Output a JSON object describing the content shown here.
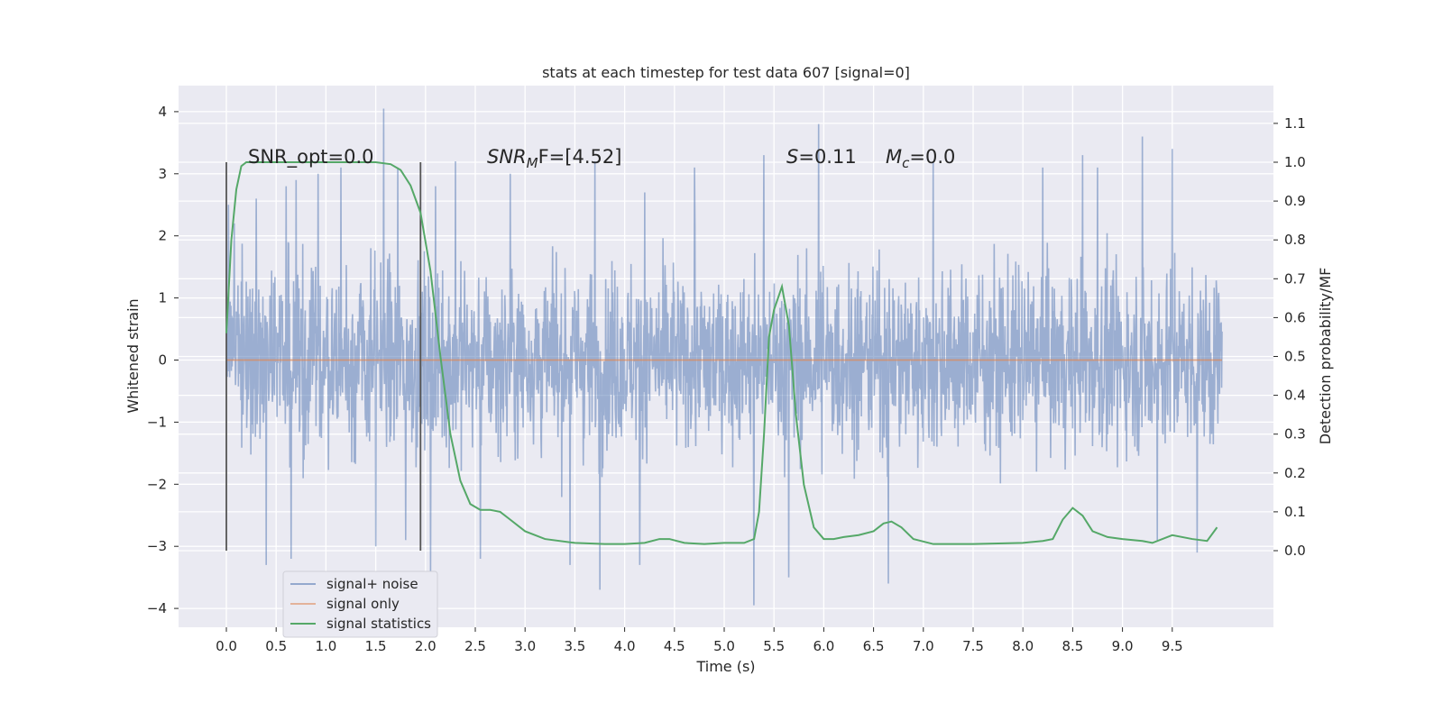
{
  "chart_data": {
    "type": "line",
    "title": "stats at each timestep for test data 607 [signal=0]",
    "xlabel": "Time (s)",
    "ylabel": "Whitened strain",
    "y2label": "Detection probability/MF",
    "xlim": [
      -0.5,
      10.5
    ],
    "ylim": [
      -4.3,
      4.4
    ],
    "y2lim": [
      -0.19,
      1.19
    ],
    "x_ticks": [
      "0.0",
      "0.5",
      "1.0",
      "1.5",
      "2.0",
      "2.5",
      "3.0",
      "3.5",
      "4.0",
      "4.5",
      "5.0",
      "5.5",
      "6.0",
      "6.5",
      "7.0",
      "7.5",
      "8.0",
      "8.5",
      "9.0",
      "9.5"
    ],
    "y_ticks": [
      "4",
      "3",
      "2",
      "1",
      "0",
      "−1",
      "−2",
      "−3",
      "−4"
    ],
    "y2_ticks": [
      "1.1",
      "1.0",
      "0.9",
      "0.8",
      "0.7",
      "0.6",
      "0.5",
      "0.4",
      "0.3",
      "0.2",
      "0.1",
      "0.0"
    ],
    "grid": true,
    "legend_position": "bottom-left",
    "legend": [
      "signal+ noise",
      "signal only",
      "signal statistics"
    ],
    "annotations": {
      "snr_opt": "SNR_opt=0.0",
      "snr_mf_name": "SNR",
      "snr_mf_sub": "M",
      "snr_mf_rest": "F=[4.52]",
      "s_name": "S",
      "s_rest": "=0.11",
      "mc_name": "M",
      "mc_sub": "c",
      "mc_rest": "=0.0"
    },
    "vertical_lines_x": [
      0.0,
      1.95
    ],
    "series": [
      {
        "name": "signal+ noise",
        "color": "#4c72b0",
        "x_range": [
          0,
          10
        ],
        "typical_range": [
          -1.3,
          1.3
        ],
        "peaks": [
          {
            "x": 0.02,
            "y": 2.5
          },
          {
            "x": 0.08,
            "y": 2.2
          },
          {
            "x": 0.3,
            "y": 2.6
          },
          {
            "x": 0.6,
            "y": 2.8
          },
          {
            "x": 0.7,
            "y": 2.9
          },
          {
            "x": 0.92,
            "y": 3.0
          },
          {
            "x": 1.15,
            "y": 3.1
          },
          {
            "x": 1.58,
            "y": 4.05
          },
          {
            "x": 1.72,
            "y": 3.1
          },
          {
            "x": 2.1,
            "y": 2.8
          },
          {
            "x": 2.3,
            "y": 3.2
          },
          {
            "x": 2.85,
            "y": 3.0
          },
          {
            "x": 3.7,
            "y": 3.2
          },
          {
            "x": 4.2,
            "y": 2.7
          },
          {
            "x": 4.7,
            "y": 3.1
          },
          {
            "x": 5.4,
            "y": 3.3
          },
          {
            "x": 5.95,
            "y": 3.8
          },
          {
            "x": 6.65,
            "y": 3.85
          },
          {
            "x": 7.1,
            "y": 3.2
          },
          {
            "x": 8.2,
            "y": 3.1
          },
          {
            "x": 8.6,
            "y": 3.3
          },
          {
            "x": 8.75,
            "y": 3.1
          },
          {
            "x": 9.2,
            "y": 3.6
          },
          {
            "x": 9.5,
            "y": 3.4
          },
          {
            "x": 9.75,
            "y": 3.7
          },
          {
            "x": 0.4,
            "y": -3.3
          },
          {
            "x": 0.65,
            "y": -3.2
          },
          {
            "x": 1.5,
            "y": -3.0
          },
          {
            "x": 1.8,
            "y": -2.9
          },
          {
            "x": 2.05,
            "y": -3.4
          },
          {
            "x": 2.55,
            "y": -3.2
          },
          {
            "x": 3.45,
            "y": -3.3
          },
          {
            "x": 3.75,
            "y": -3.7
          },
          {
            "x": 4.15,
            "y": -3.3
          },
          {
            "x": 5.3,
            "y": -3.1
          },
          {
            "x": 5.3,
            "y": -3.95
          },
          {
            "x": 5.65,
            "y": -3.5
          },
          {
            "x": 6.65,
            "y": -3.6
          },
          {
            "x": 9.35,
            "y": -2.9
          },
          {
            "x": 9.75,
            "y": -3.1
          }
        ]
      },
      {
        "name": "signal only",
        "color": "#dd8452",
        "x": [
          0,
          10
        ],
        "y": [
          0,
          0
        ]
      },
      {
        "name": "signal statistics",
        "color": "#55a868",
        "axis": "right",
        "x": [
          0.0,
          0.05,
          0.1,
          0.15,
          0.2,
          0.3,
          0.5,
          1.0,
          1.5,
          1.65,
          1.75,
          1.85,
          1.95,
          2.05,
          2.15,
          2.25,
          2.35,
          2.45,
          2.55,
          2.65,
          2.75,
          2.85,
          3.0,
          3.2,
          3.5,
          3.8,
          4.0,
          4.2,
          4.35,
          4.45,
          4.6,
          4.8,
          5.0,
          5.2,
          5.3,
          5.35,
          5.4,
          5.45,
          5.5,
          5.58,
          5.65,
          5.72,
          5.8,
          5.9,
          6.0,
          6.1,
          6.2,
          6.35,
          6.5,
          6.6,
          6.68,
          6.78,
          6.9,
          7.1,
          7.5,
          8.0,
          8.2,
          8.3,
          8.4,
          8.5,
          8.6,
          8.7,
          8.85,
          9.0,
          9.2,
          9.3,
          9.5,
          9.7,
          9.85,
          9.95
        ],
        "y": [
          0.56,
          0.8,
          0.93,
          0.99,
          1.0,
          1.0,
          1.0,
          1.0,
          1.0,
          0.995,
          0.98,
          0.94,
          0.87,
          0.72,
          0.5,
          0.3,
          0.18,
          0.12,
          0.105,
          0.105,
          0.1,
          0.08,
          0.05,
          0.03,
          0.02,
          0.017,
          0.017,
          0.02,
          0.03,
          0.03,
          0.02,
          0.017,
          0.02,
          0.02,
          0.03,
          0.1,
          0.3,
          0.55,
          0.62,
          0.68,
          0.58,
          0.35,
          0.17,
          0.06,
          0.03,
          0.03,
          0.035,
          0.04,
          0.05,
          0.07,
          0.075,
          0.06,
          0.03,
          0.017,
          0.017,
          0.02,
          0.025,
          0.03,
          0.08,
          0.11,
          0.09,
          0.05,
          0.035,
          0.03,
          0.025,
          0.02,
          0.04,
          0.03,
          0.025,
          0.06
        ]
      }
    ]
  }
}
